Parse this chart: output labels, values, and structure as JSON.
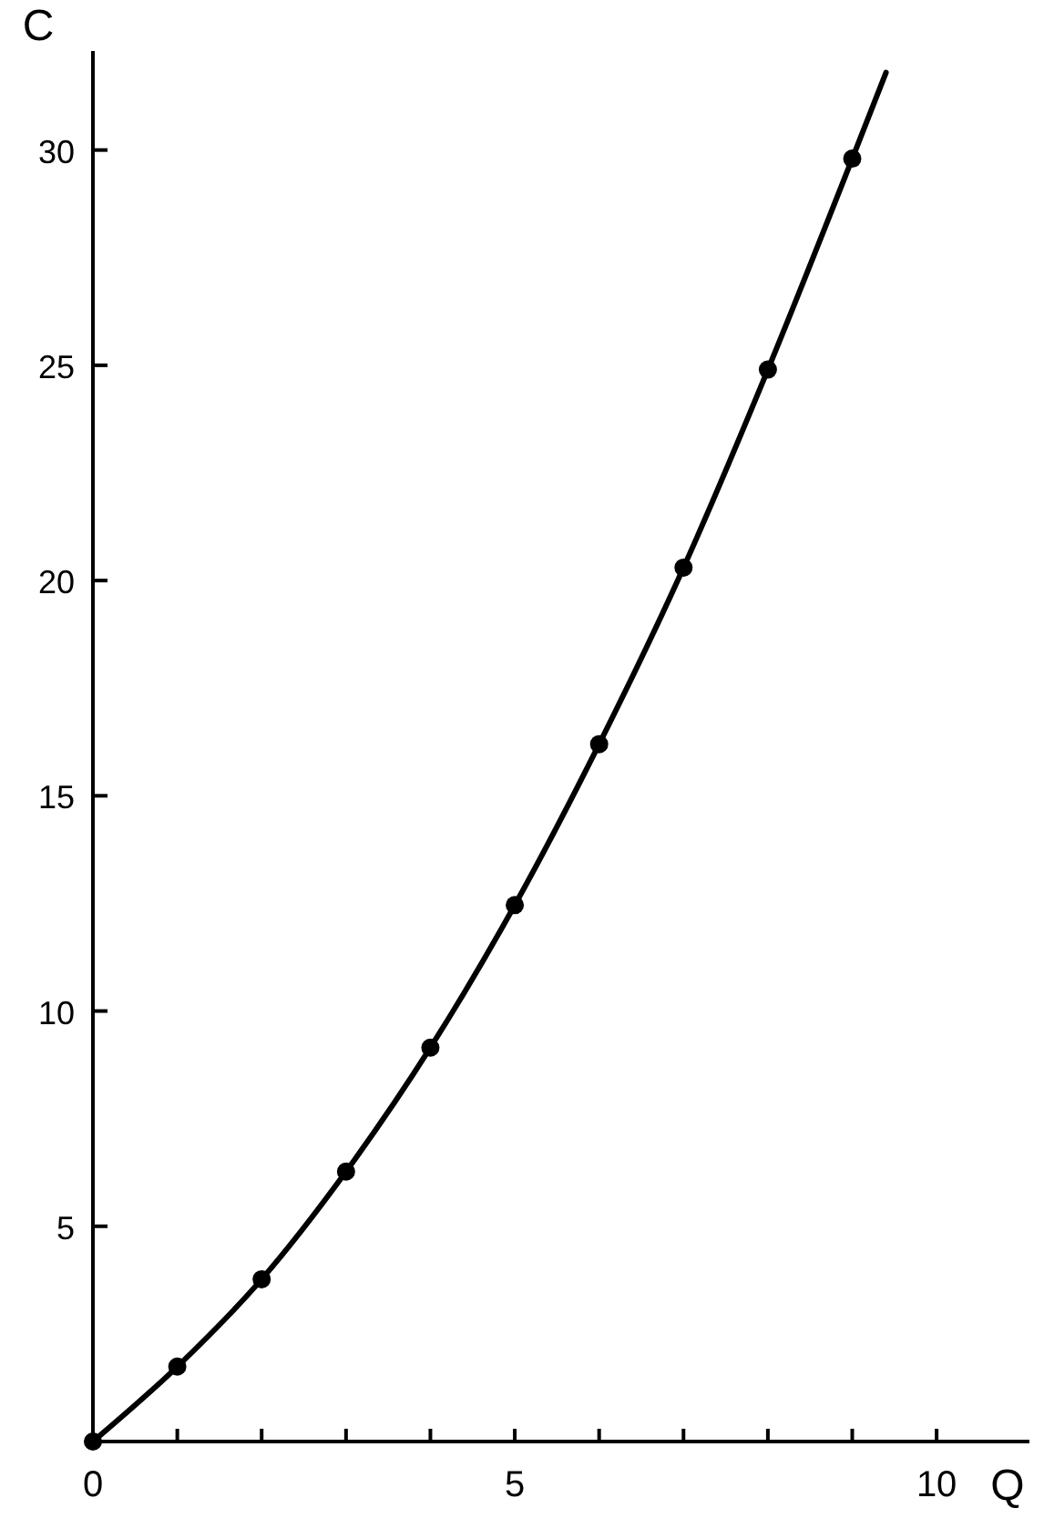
{
  "chart_data": {
    "type": "line",
    "xlabel": "Q",
    "ylabel": "C",
    "xlim": [
      0,
      11.1
    ],
    "ylim": [
      0,
      32.3
    ],
    "xticks": [
      0,
      {
        "value": 1,
        "label": null
      },
      {
        "value": 2,
        "label": null
      },
      {
        "value": 3,
        "label": null
      },
      {
        "value": 4,
        "label": null
      },
      5,
      {
        "value": 6,
        "label": null
      },
      {
        "value": 7,
        "label": null
      },
      {
        "value": 8,
        "label": null
      },
      {
        "value": 9,
        "label": null
      },
      10
    ],
    "yticks": [
      5,
      10,
      15,
      20,
      25,
      30
    ],
    "grid": false,
    "series": [
      {
        "color": "#000000",
        "marker": "none",
        "x": [
          0,
          1,
          2,
          3,
          4,
          5,
          6,
          7,
          8,
          9,
          9.4
        ],
        "values": [
          0,
          1.74,
          3.77,
          6.27,
          9.15,
          12.46,
          16.2,
          20.3,
          24.9,
          29.8,
          31.8
        ]
      },
      {
        "type": "scatter",
        "color": "#000000",
        "marker": "circle",
        "x": [
          0,
          1,
          2,
          3,
          4,
          5,
          6,
          7,
          8,
          9
        ],
        "values": [
          0,
          1.74,
          3.77,
          6.27,
          9.15,
          12.46,
          16.2,
          20.3,
          24.9,
          29.8
        ]
      }
    ]
  }
}
